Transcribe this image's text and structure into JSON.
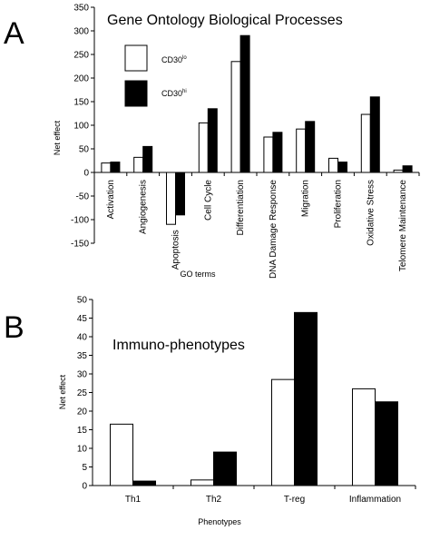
{
  "chart_data": [
    {
      "panel": "A",
      "type": "bar",
      "title": "Gene Ontology Biological Processes",
      "ylabel": "Net effect",
      "xlabel": "GO terms",
      "ylim": [
        -150,
        350
      ],
      "yticks": [
        -150,
        -100,
        -50,
        0,
        50,
        100,
        150,
        200,
        250,
        300,
        350
      ],
      "categories": [
        "Activation",
        "Angiogenesis",
        "Apoptosis",
        "Cell Cycle",
        "Differentiation",
        "DNA Damage Response",
        "Migration",
        "Proliferation",
        "Oxidative Stress",
        "Telomere Maintenance"
      ],
      "legend": {
        "position": "top-left",
        "lo_label": "CD30",
        "lo_sup": "lo",
        "hi_label": "CD30",
        "hi_sup": "hi"
      },
      "series": [
        {
          "key": "lo",
          "fill": "#ffffff",
          "values": [
            20,
            32,
            -110,
            105,
            235,
            75,
            92,
            30,
            123,
            5
          ]
        },
        {
          "key": "hi",
          "fill": "#000000",
          "values": [
            22,
            55,
            -90,
            135,
            290,
            85,
            108,
            22,
            160,
            14
          ]
        }
      ]
    },
    {
      "panel": "B",
      "type": "bar",
      "title": "Immuno-phenotypes",
      "ylabel": "Net effect",
      "xlabel": "Phenotypes",
      "ylim": [
        0,
        50
      ],
      "yticks": [
        0,
        5,
        10,
        15,
        20,
        25,
        30,
        35,
        40,
        45,
        50
      ],
      "categories": [
        "Th1",
        "Th2",
        "T-reg",
        "Inflammation"
      ],
      "series": [
        {
          "key": "lo",
          "fill": "#ffffff",
          "values": [
            16.5,
            1.5,
            28.5,
            26
          ]
        },
        {
          "key": "hi",
          "fill": "#000000",
          "values": [
            1.2,
            9,
            46.5,
            22.5
          ]
        }
      ]
    }
  ]
}
